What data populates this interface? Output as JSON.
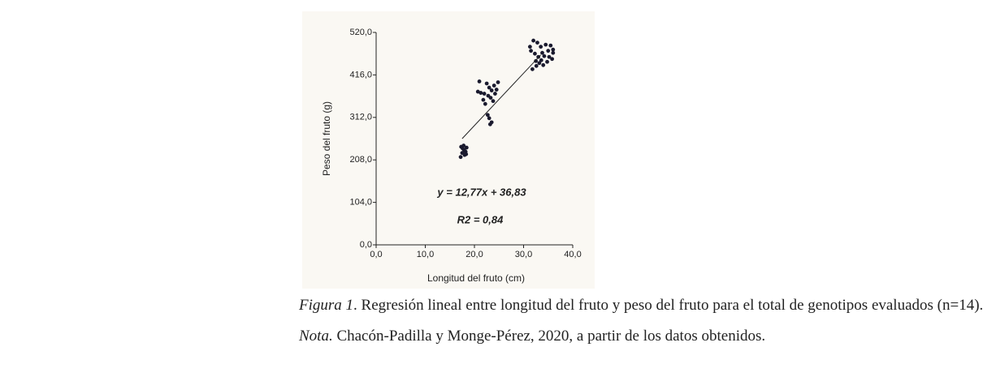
{
  "chart_data": {
    "type": "scatter",
    "x_label": "Longitud del fruto (cm)",
    "y_label": "Peso del fruto (g)",
    "xlim": [
      0,
      40
    ],
    "ylim": [
      0,
      520
    ],
    "xticks": [
      {
        "value": 0,
        "label": "0,0"
      },
      {
        "value": 10,
        "label": "10,0"
      },
      {
        "value": 20,
        "label": "20,0"
      },
      {
        "value": 30,
        "label": "30,0"
      },
      {
        "value": 40,
        "label": "40,0"
      }
    ],
    "yticks": [
      {
        "value": 0,
        "label": "0,0"
      },
      {
        "value": 104,
        "label": "104,0"
      },
      {
        "value": 208,
        "label": "208,0"
      },
      {
        "value": 312,
        "label": "312,0"
      },
      {
        "value": 416,
        "label": "416,0"
      },
      {
        "value": 520,
        "label": "520,0"
      }
    ],
    "color": "#1a1a2e",
    "x": [
      17.3,
      17.6,
      17.9,
      18.2,
      17.5,
      18.0,
      17.2,
      18.4,
      17.8,
      18.3,
      21.0,
      22.5,
      24.8,
      21.3,
      22.0,
      23.0,
      23.5,
      24.0,
      22.8,
      23.3,
      21.8,
      23.8,
      22.2,
      24.2,
      23.0,
      23.5,
      23.2,
      22.7,
      20.7,
      24.5,
      32.0,
      32.8,
      33.5,
      34.5,
      35.5,
      31.5,
      32.3,
      33.0,
      33.8,
      34.2,
      35.0,
      36.0,
      35.8,
      32.5,
      33.2,
      34.0,
      34.8,
      31.8,
      32.6,
      33.6,
      35.2,
      36.0,
      31.3
    ],
    "values": [
      240,
      236,
      232,
      228,
      225,
      220,
      215,
      238,
      243,
      222,
      400,
      395,
      398,
      372,
      370,
      385,
      378,
      390,
      365,
      360,
      355,
      352,
      345,
      370,
      310,
      300,
      295,
      318,
      375,
      380,
      500,
      495,
      485,
      490,
      488,
      475,
      468,
      460,
      470,
      462,
      475,
      470,
      455,
      450,
      445,
      440,
      448,
      430,
      438,
      452,
      460,
      478,
      485
    ],
    "trend_line": {
      "x": [
        17.5,
        33.5
      ],
      "y": [
        260,
        465
      ]
    },
    "annotations": [
      "y = 12,77x + 36,83",
      "R2 = 0,84"
    ]
  },
  "caption": {
    "label": "Figura 1",
    "text": ". Regresión lineal entre longitud del fruto y peso del fruto para el total de genotipos evaluados (n=14).",
    "note_label": "Nota.",
    "note_text": " Chacón-Padilla y Monge-Pérez, 2020, a partir de los datos obtenidos."
  }
}
